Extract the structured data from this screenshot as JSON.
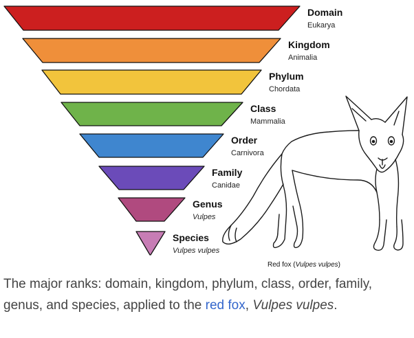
{
  "ranks": [
    {
      "name": "Domain",
      "value": "Eukarya",
      "value_italic": false,
      "color": "#cc1f1f"
    },
    {
      "name": "Kingdom",
      "value": "Animalia",
      "value_italic": false,
      "color": "#ef8f3a"
    },
    {
      "name": "Phylum",
      "value": "Chordata",
      "value_italic": false,
      "color": "#f2c43c"
    },
    {
      "name": "Class",
      "value": "Mammalia",
      "value_italic": false,
      "color": "#6fb34a"
    },
    {
      "name": "Order",
      "value": "Carnivora",
      "value_italic": false,
      "color": "#3f86cf"
    },
    {
      "name": "Family",
      "value": "Canidae",
      "value_italic": false,
      "color": "#6b4bb9"
    },
    {
      "name": "Genus",
      "value": "Vulpes",
      "value_italic": true,
      "color": "#b04a7f"
    },
    {
      "name": "Species",
      "value": "Vulpes vulpes",
      "value_italic": true,
      "color": "#c77db5"
    }
  ],
  "fox_caption": {
    "prefix": "Red fox (",
    "species": "Vulpes vulpes",
    "suffix": ")"
  },
  "caption": {
    "before": "The major ranks: domain, kingdom, phylum, class, order, family, genus, and species, applied to the ",
    "link": "red fox",
    "between": ", ",
    "species": "Vulpes vulpes",
    "after": "."
  },
  "illustration": {
    "icon": "fox-line-drawing-icon"
  }
}
